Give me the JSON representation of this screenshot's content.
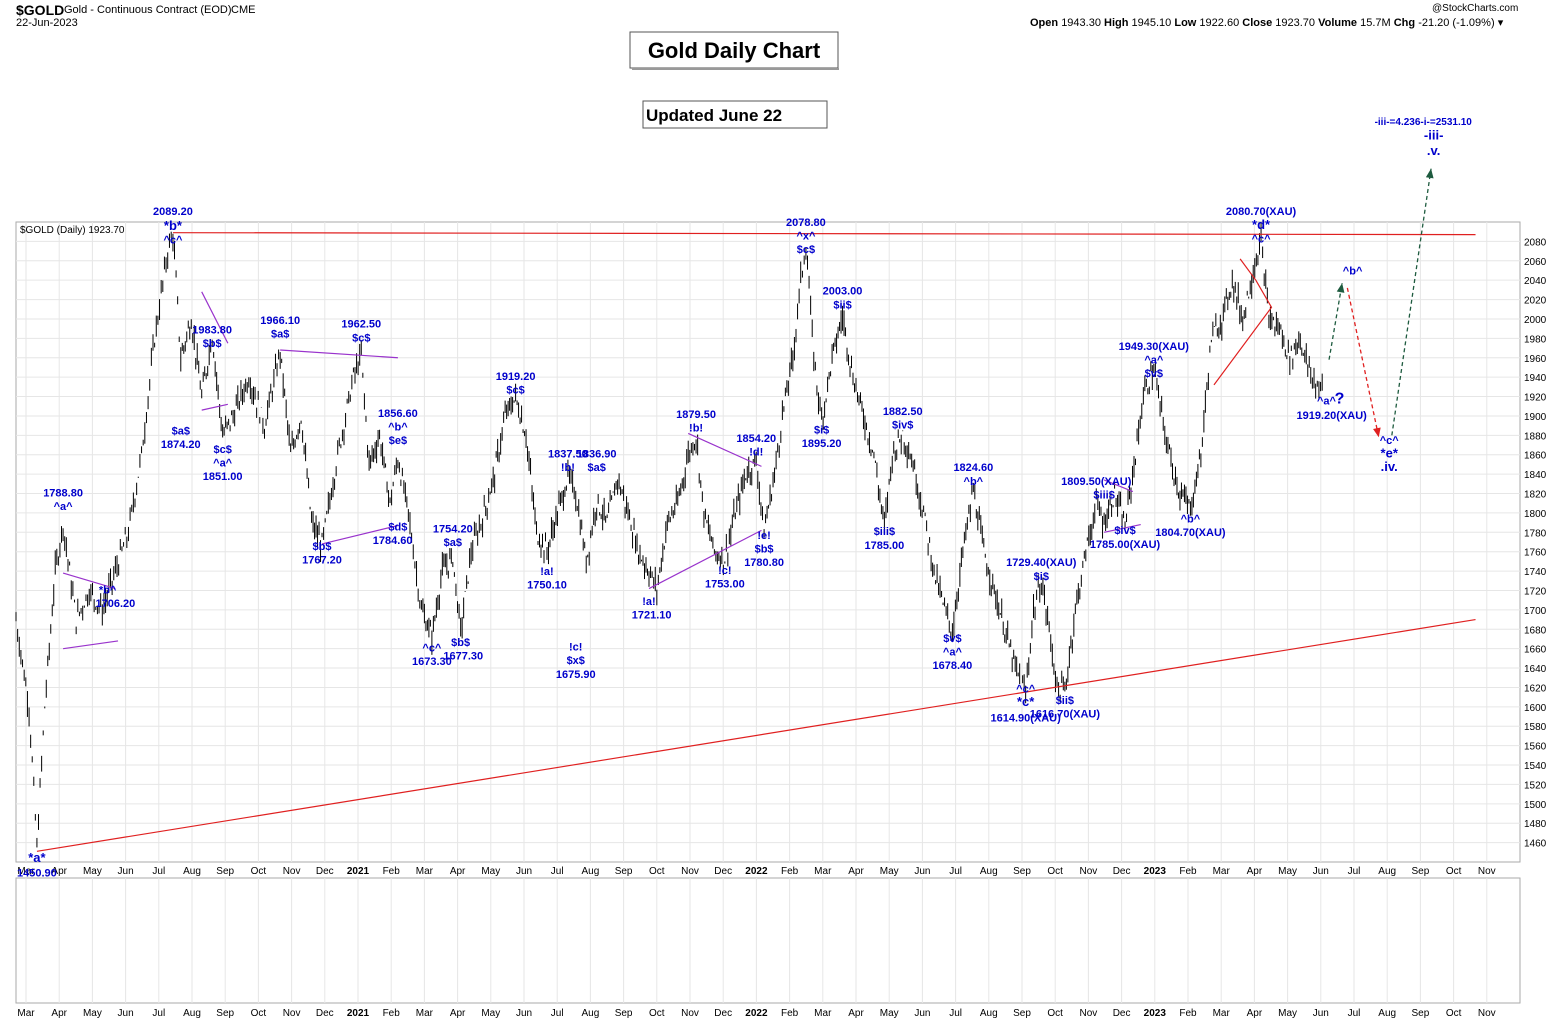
{
  "header": {
    "ticker": "$GOLD",
    "name": "Gold - Continuous Contract (EOD)",
    "exchange": "CME",
    "date": "22-Jun-2023",
    "copyright": "@StockCharts.com",
    "open_label": "Open",
    "open": "1943.30",
    "high_label": "High",
    "high": "1945.10",
    "low_label": "Low",
    "low": "1922.60",
    "close_label": "Close",
    "close": "1923.70",
    "volume_label": "Volume",
    "volume": "15.7M",
    "chg_label": "Chg",
    "chg": "-21.20 (-1.09%)"
  },
  "chart_data": {
    "type": "bar",
    "title": "Gold Daily Chart",
    "subtitle": "Updated June 22",
    "legend": "$GOLD (Daily) 1923.70",
    "ylim": [
      1440,
      2100
    ],
    "yticks": [
      1460,
      1480,
      1500,
      1520,
      1540,
      1560,
      1580,
      1600,
      1620,
      1640,
      1660,
      1680,
      1700,
      1720,
      1740,
      1760,
      1780,
      1800,
      1820,
      1840,
      1860,
      1880,
      1900,
      1920,
      1940,
      1960,
      1980,
      2000,
      2020,
      2040,
      2060,
      2080
    ],
    "xlabels": [
      "Mar",
      "Apr",
      "May",
      "Jun",
      "Jul",
      "Aug",
      "Sep",
      "Oct",
      "Nov",
      "Dec",
      "2021",
      "Feb",
      "Mar",
      "Apr",
      "May",
      "Jun",
      "Jul",
      "Aug",
      "Sep",
      "Oct",
      "Nov",
      "Dec",
      "2022",
      "Feb",
      "Mar",
      "Apr",
      "May",
      "Jun",
      "Jul",
      "Aug",
      "Sep",
      "Oct",
      "Nov",
      "Dec",
      "2023",
      "Feb",
      "Mar",
      "Apr",
      "May",
      "Jun",
      "Jul",
      "Aug",
      "Sep",
      "Oct",
      "Nov"
    ],
    "bold_xlabels": [
      "2021",
      "2022",
      "2023"
    ],
    "price_path": [
      [
        2020.17,
        1690
      ],
      [
        2020.22,
        1600
      ],
      [
        2020.25,
        1455
      ],
      [
        2020.28,
        1600
      ],
      [
        2020.32,
        1740
      ],
      [
        2020.35,
        1788
      ],
      [
        2020.4,
        1690
      ],
      [
        2020.45,
        1720
      ],
      [
        2020.5,
        1700
      ],
      [
        2020.55,
        1740
      ],
      [
        2020.6,
        1780
      ],
      [
        2020.65,
        1860
      ],
      [
        2020.7,
        1980
      ],
      [
        2020.75,
        2070
      ],
      [
        2020.77,
        2089
      ],
      [
        2020.8,
        1960
      ],
      [
        2020.84,
        2000
      ],
      [
        2020.88,
        1920
      ],
      [
        2020.92,
        1983
      ],
      [
        2020.96,
        1880
      ],
      [
        2021.0,
        1900
      ],
      [
        2021.06,
        1940
      ],
      [
        2021.12,
        1890
      ],
      [
        2021.18,
        1966
      ],
      [
        2021.22,
        1860
      ],
      [
        2021.26,
        1900
      ],
      [
        2021.3,
        1790
      ],
      [
        2021.34,
        1767
      ],
      [
        2021.4,
        1860
      ],
      [
        2021.46,
        1940
      ],
      [
        2021.49,
        1962
      ],
      [
        2021.52,
        1850
      ],
      [
        2021.56,
        1880
      ],
      [
        2021.6,
        1810
      ],
      [
        2021.63,
        1856
      ],
      [
        2021.67,
        1800
      ],
      [
        2021.72,
        1700
      ],
      [
        2021.76,
        1673
      ],
      [
        2021.8,
        1740
      ],
      [
        2021.84,
        1754
      ],
      [
        2021.87,
        1677
      ],
      [
        2021.91,
        1760
      ],
      [
        2021.96,
        1800
      ],
      [
        2022.0,
        1840
      ],
      [
        2022.04,
        1900
      ],
      [
        2022.08,
        1919
      ],
      [
        2022.12,
        1880
      ],
      [
        2022.16,
        1780
      ],
      [
        2022.2,
        1760
      ],
      [
        2022.24,
        1800
      ],
      [
        2022.28,
        1837
      ],
      [
        2022.31,
        1820
      ],
      [
        2022.35,
        1750
      ],
      [
        2022.39,
        1812
      ],
      [
        2022.43,
        1790
      ],
      [
        2022.47,
        1836
      ],
      [
        2022.51,
        1800
      ],
      [
        2022.55,
        1760
      ],
      [
        2022.59,
        1740
      ],
      [
        2022.62,
        1721
      ],
      [
        2022.66,
        1790
      ],
      [
        2022.7,
        1810
      ],
      [
        2022.74,
        1860
      ],
      [
        2022.77,
        1879
      ],
      [
        2022.8,
        1800
      ],
      [
        2022.84,
        1760
      ],
      [
        2022.88,
        1753
      ],
      [
        2022.92,
        1800
      ],
      [
        2022.96,
        1840
      ],
      [
        2023.0,
        1854
      ],
      [
        2023.03,
        1781
      ],
      [
        2023.07,
        1840
      ],
      [
        2023.1,
        1900
      ],
      [
        2023.14,
        1960
      ],
      [
        2023.17,
        2040
      ],
      [
        2023.19,
        2078
      ],
      [
        2023.22,
        1960
      ],
      [
        2023.25,
        1895
      ],
      [
        2023.29,
        1960
      ],
      [
        2023.33,
        2003
      ],
      [
        2023.37,
        1940
      ],
      [
        2023.41,
        1900
      ],
      [
        2023.45,
        1860
      ],
      [
        2023.49,
        1785
      ],
      [
        2023.52,
        1860
      ],
      [
        2023.56,
        1882
      ],
      [
        2023.6,
        1850
      ],
      [
        2023.64,
        1800
      ],
      [
        2023.68,
        1740
      ],
      [
        2023.72,
        1700
      ],
      [
        2023.75,
        1678
      ],
      [
        2023.79,
        1760
      ],
      [
        2023.83,
        1824
      ],
      [
        2023.87,
        1760
      ],
      [
        2023.91,
        1720
      ],
      [
        2023.95,
        1680
      ],
      [
        2023.99,
        1640
      ],
      [
        2024.03,
        1614
      ],
      [
        2024.06,
        1700
      ],
      [
        2024.09,
        1729
      ],
      [
        2024.12,
        1680
      ],
      [
        2024.15,
        1620
      ],
      [
        2024.18,
        1616
      ],
      [
        2024.22,
        1700
      ],
      [
        2024.26,
        1760
      ],
      [
        2024.3,
        1809
      ],
      [
        2024.33,
        1790
      ],
      [
        2024.37,
        1820
      ],
      [
        2024.41,
        1785
      ],
      [
        2024.45,
        1860
      ],
      [
        2024.48,
        1920
      ],
      [
        2024.52,
        1949
      ],
      [
        2024.55,
        1900
      ],
      [
        2024.58,
        1860
      ],
      [
        2024.62,
        1820
      ],
      [
        2024.66,
        1804
      ],
      [
        2024.7,
        1860
      ],
      [
        2024.74,
        1980
      ],
      [
        2024.78,
        2000
      ],
      [
        2024.82,
        2040
      ],
      [
        2024.86,
        2000
      ],
      [
        2024.9,
        2050
      ],
      [
        2024.93,
        2080
      ],
      [
        2024.96,
        2000
      ],
      [
        2025.0,
        1990
      ],
      [
        2025.04,
        1960
      ],
      [
        2025.08,
        1980
      ],
      [
        2025.12,
        1940
      ],
      [
        2025.17,
        1923
      ]
    ]
  },
  "labels": [
    {
      "t": "2089.20",
      "x": 2020.77,
      "y": 2107,
      "size": 11
    },
    {
      "t": "*b*",
      "x": 2020.77,
      "y": 2092,
      "size": 13
    },
    {
      "t": "^c^",
      "x": 2020.77,
      "y": 2078,
      "size": 11
    },
    {
      "t": "1983.80",
      "x": 2020.92,
      "y": 1985,
      "size": 11
    },
    {
      "t": "$b$",
      "x": 2020.92,
      "y": 1971,
      "size": 11
    },
    {
      "t": "$a$",
      "x": 2020.8,
      "y": 1881,
      "size": 11
    },
    {
      "t": "1874.20",
      "x": 2020.8,
      "y": 1867,
      "size": 11
    },
    {
      "t": "$c$",
      "x": 2020.96,
      "y": 1862,
      "size": 11
    },
    {
      "t": "^a^",
      "x": 2020.96,
      "y": 1848,
      "size": 11
    },
    {
      "t": "1851.00",
      "x": 2020.96,
      "y": 1834,
      "size": 11
    },
    {
      "t": "1788.80",
      "x": 2020.35,
      "y": 1817,
      "size": 11
    },
    {
      "t": "^a^",
      "x": 2020.35,
      "y": 1803,
      "size": 11
    },
    {
      "t": "*b^",
      "x": 2020.52,
      "y": 1717,
      "size": 11
    },
    {
      "t": "1706.20",
      "x": 2020.55,
      "y": 1703,
      "size": 11
    },
    {
      "t": "*a*",
      "x": 2020.25,
      "y": 1440,
      "size": 13
    },
    {
      "t": "1450.90",
      "x": 2020.25,
      "y": 1425,
      "size": 11
    },
    {
      "t": "1966.10",
      "x": 2021.18,
      "y": 1995,
      "size": 11
    },
    {
      "t": "$a$",
      "x": 2021.18,
      "y": 1981,
      "size": 11
    },
    {
      "t": "1962.50",
      "x": 2021.49,
      "y": 1991,
      "size": 11
    },
    {
      "t": "$c$",
      "x": 2021.49,
      "y": 1977,
      "size": 11
    },
    {
      "t": "1856.60",
      "x": 2021.63,
      "y": 1899,
      "size": 11
    },
    {
      "t": "^b^",
      "x": 2021.63,
      "y": 1885,
      "size": 11
    },
    {
      "t": "$e$",
      "x": 2021.63,
      "y": 1871,
      "size": 11
    },
    {
      "t": "$b$",
      "x": 2021.34,
      "y": 1762,
      "size": 11
    },
    {
      "t": "1767.20",
      "x": 2021.34,
      "y": 1748,
      "size": 11
    },
    {
      "t": "$d$",
      "x": 2021.63,
      "y": 1782,
      "size": 11
    },
    {
      "t": "1784.60",
      "x": 2021.61,
      "y": 1768,
      "size": 11
    },
    {
      "t": "1754.20",
      "x": 2021.84,
      "y": 1780,
      "size": 11
    },
    {
      "t": "$a$",
      "x": 2021.84,
      "y": 1766,
      "size": 11
    },
    {
      "t": "^c^",
      "x": 2021.76,
      "y": 1657,
      "size": 11
    },
    {
      "t": "1673.30",
      "x": 2021.76,
      "y": 1643,
      "size": 11
    },
    {
      "t": "$b$",
      "x": 2021.87,
      "y": 1663,
      "size": 11
    },
    {
      "t": "1677.30",
      "x": 2021.88,
      "y": 1649,
      "size": 11
    },
    {
      "t": "1919.20",
      "x": 2022.08,
      "y": 1937,
      "size": 11
    },
    {
      "t": "$c$",
      "x": 2022.08,
      "y": 1923,
      "size": 11
    },
    {
      "t": "1837.50",
      "x": 2022.28,
      "y": 1857,
      "size": 11
    },
    {
      "t": "!b!",
      "x": 2022.28,
      "y": 1843,
      "size": 11
    },
    {
      "t": "1836.90",
      "x": 2022.39,
      "y": 1857,
      "size": 11
    },
    {
      "t": "$a$",
      "x": 2022.39,
      "y": 1843,
      "size": 11
    },
    {
      "t": "!a!",
      "x": 2022.2,
      "y": 1736,
      "size": 11
    },
    {
      "t": "1750.10",
      "x": 2022.2,
      "y": 1722,
      "size": 11
    },
    {
      "t": "!c!",
      "x": 2022.31,
      "y": 1658,
      "size": 11
    },
    {
      "t": "$x$",
      "x": 2022.31,
      "y": 1644,
      "size": 11
    },
    {
      "t": "1675.90",
      "x": 2022.31,
      "y": 1630,
      "size": 11
    },
    {
      "t": "!a!",
      "x": 2022.59,
      "y": 1705,
      "size": 11
    },
    {
      "t": "1721.10",
      "x": 2022.6,
      "y": 1691,
      "size": 11
    },
    {
      "t": "1879.50",
      "x": 2022.77,
      "y": 1898,
      "size": 11
    },
    {
      "t": "!b!",
      "x": 2022.77,
      "y": 1884,
      "size": 11
    },
    {
      "t": "!c!",
      "x": 2022.88,
      "y": 1737,
      "size": 11
    },
    {
      "t": "1753.00",
      "x": 2022.88,
      "y": 1723,
      "size": 11
    },
    {
      "t": "1854.20",
      "x": 2023.0,
      "y": 1873,
      "size": 11
    },
    {
      "t": "!d!",
      "x": 2023.0,
      "y": 1859,
      "size": 11
    },
    {
      "t": "!e!",
      "x": 2023.03,
      "y": 1773,
      "size": 11
    },
    {
      "t": "$b$",
      "x": 2023.03,
      "y": 1759,
      "size": 11
    },
    {
      "t": "1780.80",
      "x": 2023.03,
      "y": 1745,
      "size": 11
    },
    {
      "t": "2078.80",
      "x": 2023.19,
      "y": 2096,
      "size": 11
    },
    {
      "t": "^x^",
      "x": 2023.19,
      "y": 2082,
      "size": 11
    },
    {
      "t": "$c$",
      "x": 2023.19,
      "y": 2068,
      "size": 11
    },
    {
      "t": "$i$",
      "x": 2023.25,
      "y": 1882,
      "size": 11
    },
    {
      "t": "1895.20",
      "x": 2023.25,
      "y": 1868,
      "size": 11
    },
    {
      "t": "2003.00",
      "x": 2023.33,
      "y": 2025,
      "size": 11
    },
    {
      "t": "$ii$",
      "x": 2023.33,
      "y": 2011,
      "size": 11
    },
    {
      "t": "1882.50",
      "x": 2023.56,
      "y": 1901,
      "size": 11
    },
    {
      "t": "$iv$",
      "x": 2023.56,
      "y": 1887,
      "size": 11
    },
    {
      "t": "$iii$",
      "x": 2023.49,
      "y": 1777,
      "size": 11
    },
    {
      "t": "1785.00",
      "x": 2023.49,
      "y": 1763,
      "size": 11
    },
    {
      "t": "1824.60",
      "x": 2023.83,
      "y": 1843,
      "size": 11
    },
    {
      "t": "^b^",
      "x": 2023.83,
      "y": 1829,
      "size": 11
    },
    {
      "t": "$v$",
      "x": 2023.75,
      "y": 1667,
      "size": 11
    },
    {
      "t": "^a^",
      "x": 2023.75,
      "y": 1653,
      "size": 11
    },
    {
      "t": "1678.40",
      "x": 2023.75,
      "y": 1639,
      "size": 11
    },
    {
      "t": "1729.40(XAU)",
      "x": 2024.09,
      "y": 1745,
      "size": 11
    },
    {
      "t": "$i$",
      "x": 2024.09,
      "y": 1731,
      "size": 11
    },
    {
      "t": "^c^",
      "x": 2024.03,
      "y": 1615,
      "size": 11
    },
    {
      "t": "*c*",
      "x": 2024.03,
      "y": 1601,
      "size": 13
    },
    {
      "t": "1614.90(XAU)",
      "x": 2024.03,
      "y": 1585,
      "size": 11
    },
    {
      "t": "$ii$",
      "x": 2024.18,
      "y": 1603,
      "size": 11
    },
    {
      "t": "1616.70(XAU)",
      "x": 2024.18,
      "y": 1589,
      "size": 11
    },
    {
      "t": "1809.50(XAU)",
      "x": 2024.3,
      "y": 1829,
      "size": 11
    },
    {
      "t": "$iii$",
      "x": 2024.33,
      "y": 1815,
      "size": 11
    },
    {
      "t": "$iv$",
      "x": 2024.41,
      "y": 1778,
      "size": 11
    },
    {
      "t": "1785.00(XAU)",
      "x": 2024.41,
      "y": 1764,
      "size": 11
    },
    {
      "t": "1949.30(XAU)",
      "x": 2024.52,
      "y": 1968,
      "size": 11
    },
    {
      "t": "^a^",
      "x": 2024.52,
      "y": 1954,
      "size": 11
    },
    {
      "t": "$v$",
      "x": 2024.52,
      "y": 1940,
      "size": 11
    },
    {
      "t": "^b^",
      "x": 2024.66,
      "y": 1790,
      "size": 11
    },
    {
      "t": "1804.70(XAU)",
      "x": 2024.66,
      "y": 1776,
      "size": 11
    },
    {
      "t": "2080.70(XAU)",
      "x": 2024.93,
      "y": 2107,
      "size": 11
    },
    {
      "t": "*d*",
      "x": 2024.93,
      "y": 2093,
      "size": 13
    },
    {
      "t": "^c^",
      "x": 2024.93,
      "y": 2079,
      "size": 11
    },
    {
      "t": "^b^",
      "x": 2025.28,
      "y": 2046,
      "size": 11
    },
    {
      "t": "^a^",
      "x": 2025.18,
      "y": 1912,
      "size": 11
    },
    {
      "t": "?",
      "x": 2025.23,
      "y": 1913,
      "size": 16
    },
    {
      "t": "1919.20(XAU)",
      "x": 2025.2,
      "y": 1897,
      "size": 11
    },
    {
      "t": "^c^",
      "x": 2025.42,
      "y": 1871,
      "size": 11
    },
    {
      "t": "*e*",
      "x": 2025.42,
      "y": 1857,
      "size": 13
    },
    {
      "t": ".iv.",
      "x": 2025.42,
      "y": 1843,
      "size": 13
    },
    {
      "t": "-iii-=4.236-i-=2531.10",
      "x": 2025.55,
      "y": 2200,
      "size": 10
    },
    {
      "t": "-iii-",
      "x": 2025.59,
      "y": 2185,
      "size": 13
    },
    {
      "t": ".v.",
      "x": 2025.59,
      "y": 2169,
      "size": 13
    }
  ],
  "colors": {
    "price": "#000000",
    "label": "#0000cc",
    "resistance": "#e02020",
    "triangle": "#9933cc",
    "up_arrow": "#1e5b3f",
    "down_arrow": "#e02020",
    "grid": "#e6e6e6"
  }
}
